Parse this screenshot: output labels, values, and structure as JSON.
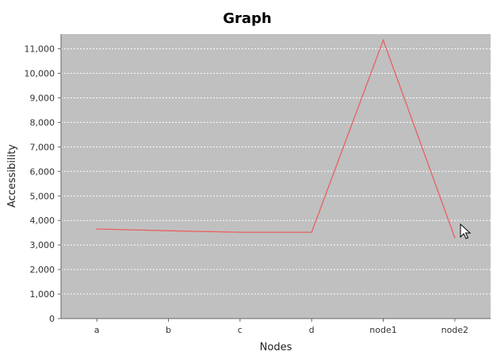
{
  "chart_data": {
    "type": "line",
    "title": "Graph",
    "xlabel": "Nodes",
    "ylabel": "Accessibility",
    "categories": [
      "a",
      "b",
      "c",
      "d",
      "node1",
      "node2"
    ],
    "series": [
      {
        "values": [
          3650,
          3580,
          3520,
          3520,
          11350,
          3300
        ],
        "color": "#e86060"
      }
    ],
    "ylim": [
      0,
      11600
    ],
    "yticks": [
      0,
      1000,
      2000,
      3000,
      4000,
      5000,
      6000,
      7000,
      8000,
      9000,
      10000,
      11000
    ],
    "ytick_labels": [
      "0",
      "1,000",
      "2,000",
      "3,000",
      "4,000",
      "5,000",
      "6,000",
      "7,000",
      "8,000",
      "9,000",
      "10,000",
      "11,000"
    ],
    "grid": true,
    "legend": "none",
    "plot_background": "#c0c0c0",
    "grid_color": "#ffffff"
  }
}
